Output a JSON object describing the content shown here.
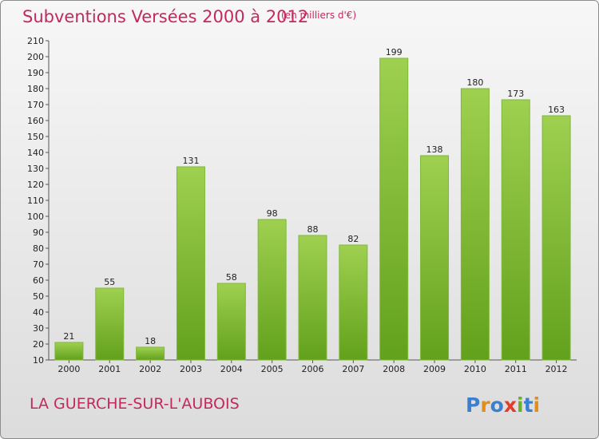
{
  "header": {
    "title": "Subventions Versées 2000 à 2012",
    "subtitle": "(en milliers d'€)"
  },
  "footer": {
    "commune": "LA GUERCHE-SUR-L'AUBOIS",
    "logo_text": "Proxiti",
    "logo_colors": [
      "#3a7fd0",
      "#e48d1b",
      "#3a7fd0",
      "#e23c2c",
      "#6fae2a",
      "#3a7fd0",
      "#e48d1b"
    ]
  },
  "chart_data": {
    "type": "bar",
    "categories": [
      "2000",
      "2001",
      "2002",
      "2003",
      "2004",
      "2005",
      "2006",
      "2007",
      "2008",
      "2009",
      "2010",
      "2011",
      "2012"
    ],
    "values": [
      21,
      55,
      18,
      131,
      58,
      98,
      88,
      82,
      199,
      138,
      180,
      173,
      163
    ],
    "ylim": [
      10,
      210
    ],
    "ytick_step": 10,
    "grid": false,
    "bar_color_top": "#9fd050",
    "bar_color_bottom": "#62a11c"
  }
}
